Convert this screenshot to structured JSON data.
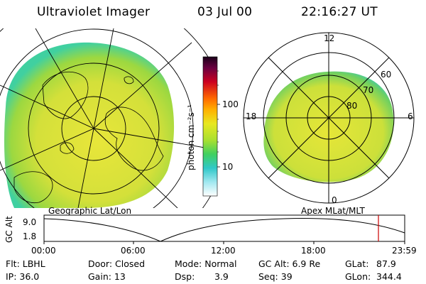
{
  "header": {
    "title": "Ultraviolet Imager",
    "date": "03 Jul 00",
    "time": "22:16:27 UT"
  },
  "colorbar": {
    "ticks": [
      "100",
      "10"
    ],
    "label": "photon cm⁻²s⁻¹"
  },
  "geo_panel": {
    "caption": "Geographic Lat/Lon"
  },
  "mlt_panel": {
    "caption": "Apex MLat/MLT",
    "hours": [
      "12",
      "18",
      "6",
      "0"
    ],
    "lats": [
      "60",
      "70",
      "80"
    ]
  },
  "altitude_plot": {
    "ylabel": "GC Alt",
    "yticks": [
      "9.0",
      "1.8"
    ],
    "xticks": [
      "00:00",
      "06:00",
      "12:00",
      "18:00",
      "23:59"
    ]
  },
  "info": {
    "filter": "Flt: LBHL",
    "ip": "IP: 36.0",
    "door": "Door: Closed",
    "gain": "Gain: 13",
    "mode": "Mode: Normal",
    "dsp_label": "Dsp:",
    "dsp_value": "3.9",
    "gcalt": "GC Alt: 6.9 Re",
    "seq": "Seq: 39",
    "glat_label": "GLat:",
    "glat_value": "87.9",
    "glon_label": "GLon:",
    "glon_value": "344.4"
  },
  "colors": {
    "aurora_fill": "#d8e03a",
    "aurora_core": "#e6e636",
    "aurora_edge": "#3fd0a0",
    "colorbar_top": "#200020",
    "marker_line": "#cc0000"
  }
}
